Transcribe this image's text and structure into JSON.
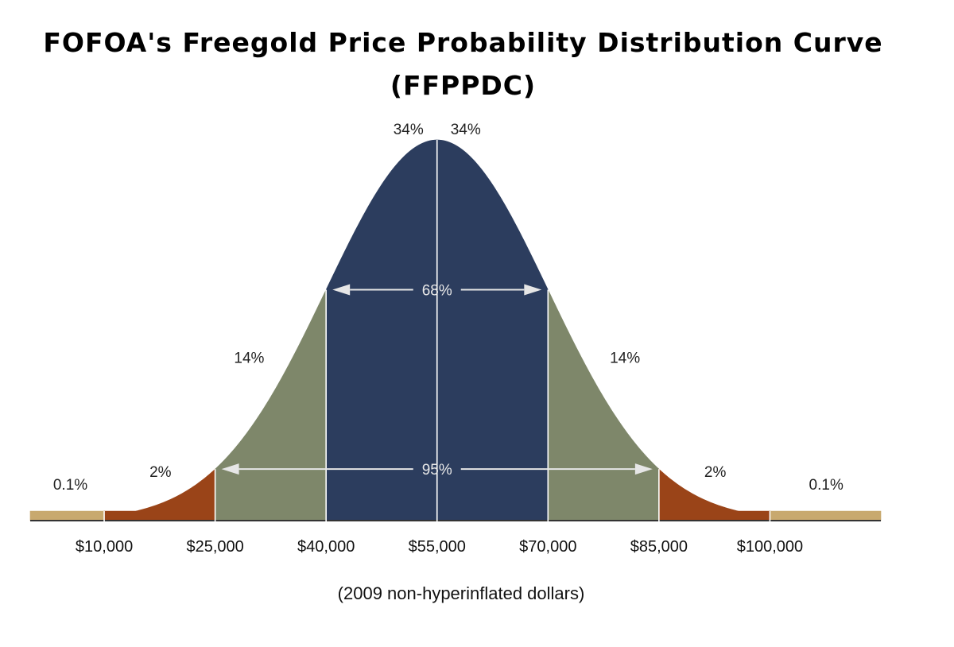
{
  "title": "FOFOA's Freegold Price Probability Distribution Curve",
  "subtitle": "(FFPPDC)",
  "chart_data": {
    "type": "area",
    "title": "FOFOA's Freegold Price Probability Distribution Curve (FFPPDC)",
    "xlabel": "(2009 non-hyperinflated dollars)",
    "ylabel": "",
    "mean": 55000,
    "std_dev": 15000,
    "xlim": [
      0,
      115000
    ],
    "ticks": [
      {
        "value": 10000,
        "label": "$10,000"
      },
      {
        "value": 25000,
        "label": "$25,000"
      },
      {
        "value": 40000,
        "label": "$40,000"
      },
      {
        "value": 55000,
        "label": "$55,000"
      },
      {
        "value": 70000,
        "label": "$70,000"
      },
      {
        "value": 85000,
        "label": "$85,000"
      },
      {
        "value": 100000,
        "label": "$100,000"
      }
    ],
    "regions": [
      {
        "from": 0,
        "to": 10000,
        "percent": "0.1%",
        "color": "#c8a96e"
      },
      {
        "from": 10000,
        "to": 25000,
        "percent": "2%",
        "color": "#9a4418"
      },
      {
        "from": 25000,
        "to": 40000,
        "percent": "14%",
        "color": "#7e876a"
      },
      {
        "from": 40000,
        "to": 55000,
        "percent": "34%",
        "color": "#2c3d5e"
      },
      {
        "from": 55000,
        "to": 70000,
        "percent": "34%",
        "color": "#2c3d5e"
      },
      {
        "from": 70000,
        "to": 85000,
        "percent": "14%",
        "color": "#7e876a"
      },
      {
        "from": 85000,
        "to": 100000,
        "percent": "2%",
        "color": "#9a4418"
      },
      {
        "from": 100000,
        "to": 115000,
        "percent": "0.1%",
        "color": "#c8a96e"
      }
    ],
    "ranges": [
      {
        "from": 40000,
        "to": 70000,
        "label": "68%"
      },
      {
        "from": 25000,
        "to": 85000,
        "label": "95%"
      }
    ],
    "grid": false,
    "legend": "none"
  }
}
